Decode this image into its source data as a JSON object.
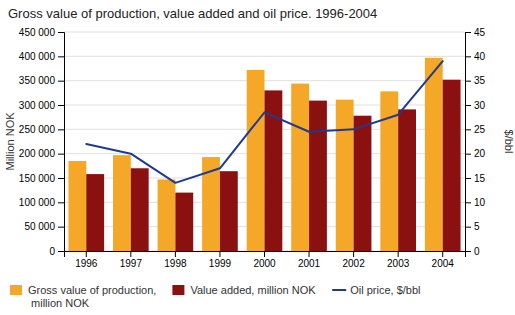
{
  "chart_data": {
    "type": "bar",
    "title": "Gross value of production, value added and oil price. 1996-2004",
    "y_label": "Million NOK",
    "y2_label": "$/bbl",
    "categories": [
      "1996",
      "1997",
      "1998",
      "1999",
      "2000",
      "2001",
      "2002",
      "2003",
      "2004"
    ],
    "series": [
      {
        "name": "Gross value of production,\nmillion NOK",
        "type": "bar",
        "color": "#F5A828",
        "values": [
          185000,
          197000,
          147000,
          193000,
          372000,
          344000,
          311000,
          328000,
          397000
        ]
      },
      {
        "name": "Value added, million NOK",
        "type": "bar",
        "color": "#8B1010",
        "values": [
          158000,
          170000,
          120000,
          164000,
          330000,
          309000,
          278000,
          291000,
          352000
        ]
      },
      {
        "name": "Oil price, $/bbl",
        "type": "line",
        "axis": "y2",
        "color": "#1F3A8F",
        "values": [
          22,
          20,
          14,
          17,
          28.5,
          24.5,
          25,
          28,
          39
        ]
      }
    ],
    "ylim": [
      0,
      450000
    ],
    "yticks": [
      0,
      {
        "value": 50000,
        "label": "50 000"
      },
      {
        "value": 100000,
        "label": "100 000"
      },
      {
        "value": 150000,
        "label": "150 000"
      },
      {
        "value": 200000,
        "label": "200 000"
      },
      {
        "value": 250000,
        "label": "250 000"
      },
      {
        "value": 300000,
        "label": "300 000"
      },
      {
        "value": 350000,
        "label": "350 000"
      },
      {
        "value": 400000,
        "label": "400 000"
      },
      {
        "value": 450000,
        "label": "450 000"
      }
    ],
    "y2lim": [
      0,
      45
    ],
    "y2ticks": [
      0,
      5,
      10,
      15,
      20,
      25,
      30,
      35,
      40,
      45
    ],
    "grid": true,
    "legend": "bottom"
  }
}
